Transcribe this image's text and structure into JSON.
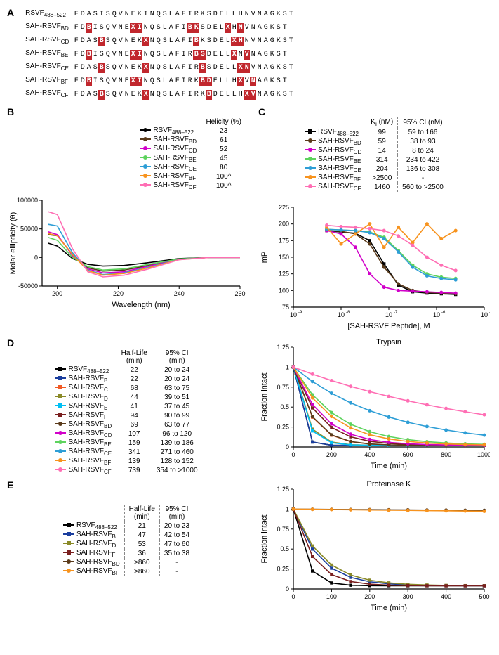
{
  "colors": {
    "RSVF": "#000000",
    "B": "#1a3e9e",
    "C": "#f15a24",
    "D": "#8a8a28",
    "E": "#00bff3",
    "F": "#7a1f1f",
    "BD": "#5a3a1a",
    "CD": "#d100c9",
    "BE": "#5dd35d",
    "CE": "#2e9ed6",
    "BF": "#f7931e",
    "CF": "#ff6eb4",
    "background": "#ffffff",
    "axis": "#000000",
    "grid": "#ffffff"
  },
  "panelA": {
    "rows": [
      {
        "name": "RSVF",
        "sub": "488–522",
        "seq": "FDASISQVNEKINQSLAFIRKSDELLHNVNAGKST"
      },
      {
        "name": "SAH-RSVF",
        "sub": "BD",
        "seq": "FDB_ISQVNEX_INQSLAFIB_KSDELX_HNVNAGKST",
        "staples": [
          [
            2,
            2
          ],
          [
            10,
            10
          ],
          [
            19,
            19
          ],
          [
            26,
            26
          ]
        ]
      },
      {
        "name": "SAH-RSVF",
        "sub": "CD",
        "seq": "FDASB_SQVNEKX_NQSLAFIB_KSDELX_HNVNAGKST",
        "staples": [
          [
            4,
            4
          ],
          [
            11,
            11
          ],
          [
            19,
            19
          ],
          [
            26,
            26
          ]
        ]
      },
      {
        "name": "SAH-RSVF",
        "sub": "BE",
        "seq": "FDB_ISQVNEX_INQSLAFIRB_SDELLX_NVNAGKST",
        "staples": [
          [
            2,
            2
          ],
          [
            10,
            10
          ],
          [
            20,
            20
          ],
          [
            27,
            27
          ]
        ]
      },
      {
        "name": "SAH-RSVF",
        "sub": "CE",
        "seq": "FDASB_SQVNEKX_NQSLAFIRB_SDELLX_NVNAGKST",
        "staples": [
          [
            4,
            4
          ],
          [
            11,
            11
          ],
          [
            20,
            20
          ],
          [
            27,
            27
          ]
        ]
      },
      {
        "name": "SAH-RSVF",
        "sub": "BF",
        "seq": "FDB_ISQVNEX_INQSLAFIRKB_DELLHX_VNAGKST",
        "staples": [
          [
            2,
            2
          ],
          [
            10,
            10
          ],
          [
            21,
            21
          ],
          [
            28,
            28
          ]
        ]
      },
      {
        "name": "SAH-RSVF",
        "sub": "CF",
        "seq": "FDASB_SQVNEKX_NQSLAFIRKB_DELLHX_VNAGKST",
        "staples": [
          [
            4,
            4
          ],
          [
            11,
            11
          ],
          [
            21,
            21
          ],
          [
            28,
            28
          ]
        ]
      }
    ]
  },
  "panelB": {
    "title": "",
    "xlabel": "Wavelength (nm)",
    "ylabel": "Molar ellipticity (θ)",
    "xlim": [
      195,
      260
    ],
    "ylim": [
      -50000,
      100000
    ],
    "xticks": [
      200,
      220,
      240,
      260
    ],
    "yticks": [
      -50000,
      0,
      50000,
      100000
    ],
    "legend_header": [
      "",
      "Helicity (%)"
    ],
    "legend": [
      {
        "name": "RSVF",
        "sub": "488–522",
        "color": "RSVF",
        "hel": "23"
      },
      {
        "name": "SAH-RSVF",
        "sub": "BD",
        "color": "BD",
        "hel": "61"
      },
      {
        "name": "SAH-RSVF",
        "sub": "CD",
        "color": "CD",
        "hel": "52"
      },
      {
        "name": "SAH-RSVF",
        "sub": "BE",
        "color": "BE",
        "hel": "45"
      },
      {
        "name": "SAH-RSVF",
        "sub": "CE",
        "color": "CE",
        "hel": "80"
      },
      {
        "name": "SAH-RSVF",
        "sub": "BF",
        "color": "BF",
        "hel": "100^"
      },
      {
        "name": "SAH-RSVF",
        "sub": "CF",
        "color": "CF",
        "hel": "100^"
      }
    ],
    "series": {
      "RSVF": [
        [
          197,
          25000
        ],
        [
          200,
          20000
        ],
        [
          205,
          -2000
        ],
        [
          210,
          -12000
        ],
        [
          215,
          -15000
        ],
        [
          222,
          -14000
        ],
        [
          230,
          -9000
        ],
        [
          240,
          -2000
        ],
        [
          250,
          0
        ],
        [
          260,
          0
        ]
      ],
      "BD": [
        [
          197,
          40000
        ],
        [
          200,
          38000
        ],
        [
          205,
          5000
        ],
        [
          210,
          -18000
        ],
        [
          215,
          -24000
        ],
        [
          222,
          -22000
        ],
        [
          230,
          -14000
        ],
        [
          240,
          -3000
        ],
        [
          250,
          0
        ],
        [
          260,
          0
        ]
      ],
      "CD": [
        [
          197,
          45000
        ],
        [
          200,
          40000
        ],
        [
          205,
          3000
        ],
        [
          210,
          -20000
        ],
        [
          215,
          -27000
        ],
        [
          222,
          -25000
        ],
        [
          230,
          -15000
        ],
        [
          240,
          -3000
        ],
        [
          250,
          0
        ],
        [
          260,
          0
        ]
      ],
      "BE": [
        [
          197,
          35000
        ],
        [
          200,
          30000
        ],
        [
          205,
          0
        ],
        [
          210,
          -16000
        ],
        [
          215,
          -22000
        ],
        [
          222,
          -20000
        ],
        [
          230,
          -12000
        ],
        [
          240,
          -2500
        ],
        [
          250,
          0
        ],
        [
          260,
          0
        ]
      ],
      "CE": [
        [
          197,
          58000
        ],
        [
          200,
          55000
        ],
        [
          205,
          8000
        ],
        [
          210,
          -22000
        ],
        [
          215,
          -30000
        ],
        [
          222,
          -27000
        ],
        [
          230,
          -17000
        ],
        [
          240,
          -3500
        ],
        [
          250,
          0
        ],
        [
          260,
          0
        ]
      ],
      "BF": [
        [
          197,
          42000
        ],
        [
          200,
          38000
        ],
        [
          205,
          5000
        ],
        [
          210,
          -23000
        ],
        [
          215,
          -31000
        ],
        [
          222,
          -28000
        ],
        [
          230,
          -18000
        ],
        [
          240,
          -3800
        ],
        [
          250,
          0
        ],
        [
          260,
          0
        ]
      ],
      "CF": [
        [
          197,
          80000
        ],
        [
          200,
          75000
        ],
        [
          205,
          15000
        ],
        [
          210,
          -25000
        ],
        [
          215,
          -34000
        ],
        [
          222,
          -31000
        ],
        [
          230,
          -20000
        ],
        [
          240,
          -4000
        ],
        [
          250,
          0
        ],
        [
          260,
          0
        ]
      ]
    }
  },
  "panelC": {
    "legend_header": [
      "",
      "K",
      "95% CI (nM)"
    ],
    "k_sub": "i",
    "k_unit": "(nM)",
    "legend": [
      {
        "name": "RSVF",
        "sub": "488–522",
        "color": "RSVF",
        "ki": "99",
        "ci": "59 to 166",
        "marker": "sq"
      },
      {
        "name": "SAH-RSVF",
        "sub": "BD",
        "color": "BD",
        "ki": "59",
        "ci": "38 to 93",
        "marker": "ci"
      },
      {
        "name": "SAH-RSVF",
        "sub": "CD",
        "color": "CD",
        "ki": "14",
        "ci": "8 to 24",
        "marker": "ci"
      },
      {
        "name": "SAH-RSVF",
        "sub": "BE",
        "color": "BE",
        "ki": "314",
        "ci": "234 to 422",
        "marker": "ci"
      },
      {
        "name": "SAH-RSVF",
        "sub": "CE",
        "color": "CE",
        "ki": "204",
        "ci": "136 to 308",
        "marker": "ci"
      },
      {
        "name": "SAH-RSVF",
        "sub": "BF",
        "color": "BF",
        "ki": ">2500",
        "ci": "-",
        "marker": "ci"
      },
      {
        "name": "SAH-RSVF",
        "sub": "CF",
        "color": "CF",
        "ki": "1460",
        "ci": "560 to >2500",
        "marker": "ci"
      }
    ],
    "xlabel": "[SAH-RSVF Peptide], M",
    "ylabel": "mP",
    "xlim_log": [
      -9,
      -5
    ],
    "ylim": [
      75,
      225
    ],
    "xticks_log": [
      -9,
      -8,
      -7,
      -6,
      -5
    ],
    "yticks": [
      75,
      100,
      125,
      150,
      175,
      200,
      225
    ],
    "series": {
      "RSVF": [
        [
          -8.3,
          190
        ],
        [
          -8.0,
          188
        ],
        [
          -7.7,
          186
        ],
        [
          -7.4,
          175
        ],
        [
          -7.1,
          140
        ],
        [
          -6.8,
          108
        ],
        [
          -6.5,
          98
        ],
        [
          -6.2,
          96
        ],
        [
          -5.9,
          95
        ],
        [
          -5.6,
          94
        ]
      ],
      "BD": [
        [
          -8.3,
          190
        ],
        [
          -8.0,
          189
        ],
        [
          -7.7,
          185
        ],
        [
          -7.4,
          170
        ],
        [
          -7.1,
          135
        ],
        [
          -6.8,
          110
        ],
        [
          -6.5,
          100
        ],
        [
          -6.2,
          97
        ],
        [
          -5.9,
          96
        ],
        [
          -5.6,
          95
        ]
      ],
      "CD": [
        [
          -8.3,
          190
        ],
        [
          -8.0,
          185
        ],
        [
          -7.7,
          165
        ],
        [
          -7.4,
          125
        ],
        [
          -7.1,
          105
        ],
        [
          -6.8,
          100
        ],
        [
          -6.5,
          99
        ],
        [
          -6.2,
          98
        ],
        [
          -5.9,
          97
        ],
        [
          -5.6,
          96
        ]
      ],
      "BE": [
        [
          -8.3,
          192
        ],
        [
          -8.0,
          191
        ],
        [
          -7.7,
          190
        ],
        [
          -7.4,
          188
        ],
        [
          -7.1,
          180
        ],
        [
          -6.8,
          160
        ],
        [
          -6.5,
          138
        ],
        [
          -6.2,
          125
        ],
        [
          -5.9,
          120
        ],
        [
          -5.6,
          118
        ]
      ],
      "CE": [
        [
          -8.3,
          192
        ],
        [
          -8.0,
          191
        ],
        [
          -7.7,
          190
        ],
        [
          -7.4,
          187
        ],
        [
          -7.1,
          178
        ],
        [
          -6.8,
          158
        ],
        [
          -6.5,
          135
        ],
        [
          -6.2,
          122
        ],
        [
          -5.9,
          118
        ],
        [
          -5.6,
          116
        ]
      ],
      "BF": [
        [
          -8.3,
          195
        ],
        [
          -8.0,
          170
        ],
        [
          -7.7,
          185
        ],
        [
          -7.4,
          200
        ],
        [
          -7.1,
          165
        ],
        [
          -6.8,
          195
        ],
        [
          -6.5,
          172
        ],
        [
          -6.2,
          200
        ],
        [
          -5.9,
          178
        ],
        [
          -5.6,
          190
        ]
      ],
      "CF": [
        [
          -8.3,
          198
        ],
        [
          -8.0,
          196
        ],
        [
          -7.7,
          195
        ],
        [
          -7.4,
          193
        ],
        [
          -7.1,
          190
        ],
        [
          -6.8,
          182
        ],
        [
          -6.5,
          168
        ],
        [
          -6.2,
          150
        ],
        [
          -5.9,
          138
        ],
        [
          -5.6,
          130
        ]
      ]
    }
  },
  "panelD": {
    "chart_title": "Trypsin",
    "legend_header": [
      "",
      "Half-Life (min)",
      "95% CI (min)"
    ],
    "legend": [
      {
        "name": "RSVF",
        "sub": "488–522",
        "color": "RSVF",
        "hl": "22",
        "ci": "20 to 24",
        "marker": "sq"
      },
      {
        "name": "SAH-RSVF",
        "sub": "B",
        "color": "B",
        "hl": "22",
        "ci": "20 to 24",
        "marker": "sq"
      },
      {
        "name": "SAH-RSVF",
        "sub": "C",
        "color": "C",
        "hl": "68",
        "ci": "63 to 75",
        "marker": "sq"
      },
      {
        "name": "SAH-RSVF",
        "sub": "D",
        "color": "D",
        "hl": "44",
        "ci": "39 to 51",
        "marker": "sq"
      },
      {
        "name": "SAH-RSVF",
        "sub": "E",
        "color": "E",
        "hl": "41",
        "ci": "37 to 45",
        "marker": "sq"
      },
      {
        "name": "SAH-RSVF",
        "sub": "F",
        "color": "F",
        "hl": "94",
        "ci": "90 to 99",
        "marker": "sq"
      },
      {
        "name": "SAH-RSVF",
        "sub": "BD",
        "color": "BD",
        "hl": "69",
        "ci": "63 to 77",
        "marker": "ci"
      },
      {
        "name": "SAH-RSVF",
        "sub": "CD",
        "color": "CD",
        "hl": "107",
        "ci": "96 to 120",
        "marker": "ci"
      },
      {
        "name": "SAH-RSVF",
        "sub": "BE",
        "color": "BE",
        "hl": "159",
        "ci": "139 to 186",
        "marker": "ci"
      },
      {
        "name": "SAH-RSVF",
        "sub": "CE",
        "color": "CE",
        "hl": "341",
        "ci": "271 to 460",
        "marker": "ci"
      },
      {
        "name": "SAH-RSVF",
        "sub": "BF",
        "color": "BF",
        "hl": "139",
        "ci": "128 to 152",
        "marker": "ci"
      },
      {
        "name": "SAH-RSVF",
        "sub": "CF",
        "color": "CF",
        "hl": "739",
        "ci": "354 to >1000",
        "marker": "ci"
      }
    ],
    "xlabel": "Time (min)",
    "ylabel": "Fraction intact",
    "xlim": [
      0,
      1000
    ],
    "ylim": [
      0,
      1.25
    ],
    "xticks": [
      0,
      200,
      400,
      600,
      800,
      1000
    ],
    "yticks": [
      0,
      0.25,
      0.5,
      0.75,
      1.0,
      1.25
    ]
  },
  "panelE": {
    "chart_title": "Proteinase K",
    "legend_header": [
      "",
      "Half-Life (min)",
      "95% CI (min)"
    ],
    "legend": [
      {
        "name": "RSVF",
        "sub": "488–522",
        "color": "RSVF",
        "hl": "21",
        "ci": "20 to 23",
        "marker": "sq"
      },
      {
        "name": "SAH-RSVF",
        "sub": "B",
        "color": "B",
        "hl": "47",
        "ci": "42 to 54",
        "marker": "sq"
      },
      {
        "name": "SAH-RSVF",
        "sub": "D",
        "color": "D",
        "hl": "53",
        "ci": "47 to 60",
        "marker": "sq"
      },
      {
        "name": "SAH-RSVF",
        "sub": "F",
        "color": "F",
        "hl": "36",
        "ci": "35 to 38",
        "marker": "sq"
      },
      {
        "name": "SAH-RSVF",
        "sub": "BD",
        "color": "BD",
        "hl": ">860",
        "ci": "-",
        "marker": "ci"
      },
      {
        "name": "SAH-RSVF",
        "sub": "BF",
        "color": "BF",
        "hl": ">860",
        "ci": "-",
        "marker": "ci"
      }
    ],
    "xlabel": "Time (min)",
    "ylabel": "Fraction intact",
    "xlim": [
      0,
      500
    ],
    "ylim": [
      0,
      1.25
    ],
    "xticks": [
      0,
      100,
      200,
      300,
      400,
      500
    ],
    "yticks": [
      0,
      0.25,
      0.5,
      0.75,
      1.0,
      1.25
    ]
  }
}
